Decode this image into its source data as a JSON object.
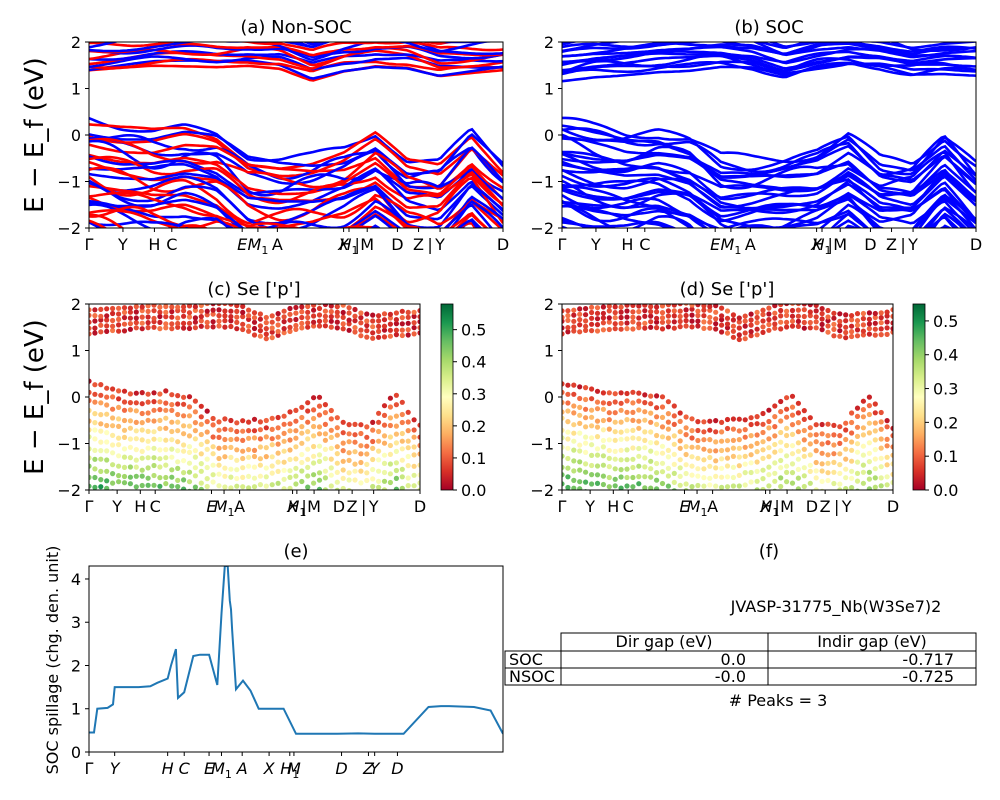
{
  "chart_data": [
    {
      "id": "a",
      "type": "line",
      "title": "(a) Non-SOC",
      "ylabel": "E − E_f (eV)",
      "ylim": [
        -2,
        2
      ],
      "yticks": [
        "2",
        "1",
        "0",
        "−1",
        "−2"
      ],
      "xticks": [
        "Γ",
        "Y",
        "H",
        "C",
        "E",
        "M1",
        "A",
        "X",
        "H1",
        "M",
        "D",
        "Z",
        "Y",
        "D"
      ],
      "series": [
        {
          "color": "#0000ff"
        },
        {
          "color": "#ff0000"
        }
      ],
      "bands": {
        "valence_top": [
          0.35,
          0.2,
          0.1,
          0.15,
          0.0,
          -0.45,
          -0.5,
          -0.45,
          -0.3,
          0.05,
          -0.55,
          -0.6,
          0.1,
          -0.6
        ],
        "conduction_bottom": [
          1.35,
          1.4,
          1.45,
          1.45,
          1.45,
          1.5,
          1.45,
          1.2,
          1.4,
          1.5,
          1.45,
          1.25,
          1.3,
          1.35
        ]
      }
    },
    {
      "id": "b",
      "type": "line",
      "title": "(b) SOC",
      "ylim": [
        -2,
        2
      ],
      "yticks": [
        "2",
        "1",
        "0",
        "−1",
        "−2"
      ],
      "xticks": [
        "Γ",
        "Y",
        "H",
        "C",
        "E",
        "M1",
        "A",
        "X",
        "H1",
        "M",
        "D",
        "Z",
        "Y",
        "D"
      ],
      "series": [
        {
          "color": "#0000ff"
        }
      ],
      "bands": {
        "valence_top": [
          0.3,
          0.15,
          0.05,
          0.1,
          -0.05,
          -0.5,
          -0.5,
          -0.45,
          -0.35,
          0.0,
          -0.55,
          -0.6,
          0.05,
          -0.6
        ],
        "conduction_bottom": [
          1.2,
          1.3,
          1.35,
          1.4,
          1.4,
          1.45,
          1.4,
          1.2,
          1.35,
          1.45,
          1.4,
          1.25,
          1.3,
          1.3
        ]
      }
    },
    {
      "id": "c",
      "type": "scatter",
      "title": "(c)  Se ['p']",
      "ylabel": "E − E_f (eV)",
      "ylim": [
        -2,
        2
      ],
      "yticks": [
        "2",
        "1",
        "0",
        "−1",
        "−2"
      ],
      "xticks": [
        "Γ",
        "Y",
        "H",
        "C",
        "E",
        "M1",
        "A",
        "X",
        "H1",
        "M",
        "D",
        "Z",
        "Y",
        "D"
      ],
      "colorbar": {
        "ticks": [
          "0.5",
          "0.4",
          "0.3",
          "0.2",
          "0.1",
          "0.0"
        ],
        "range": [
          0.0,
          0.58
        ]
      }
    },
    {
      "id": "d",
      "type": "scatter",
      "title": "(d) Se ['p']",
      "ylim": [
        -2,
        2
      ],
      "yticks": [
        "2",
        "1",
        "0",
        "−1",
        "−2"
      ],
      "xticks": [
        "Γ",
        "Y",
        "H",
        "C",
        "E",
        "M1",
        "A",
        "X",
        "H1",
        "M",
        "D",
        "Z",
        "Y",
        "D"
      ],
      "colorbar": {
        "ticks": [
          "0.5",
          "0.4",
          "0.3",
          "0.2",
          "0.1",
          "0.0"
        ],
        "range": [
          0.0,
          0.55
        ]
      }
    },
    {
      "id": "e",
      "type": "line",
      "title": "(e)",
      "ylabel": "SOC spillage (chg. den. unit)",
      "ylim": [
        0,
        4.3
      ],
      "yticks": [
        "4",
        "3",
        "2",
        "1",
        "0"
      ],
      "xticks": [
        "Γ",
        "Y",
        "H",
        "C",
        "E",
        "M1",
        "A",
        "X",
        "H1",
        "M",
        "D",
        "Z",
        "Y",
        "D"
      ],
      "series": [
        {
          "color": "#1f77b4",
          "x": [
            0,
            0.012,
            0.02,
            0.045,
            0.058,
            0.062,
            0.1,
            0.12,
            0.148,
            0.165,
            0.19,
            0.198,
            0.21,
            0.215,
            0.23,
            0.252,
            0.268,
            0.28,
            0.285,
            0.29,
            0.31,
            0.32,
            0.328,
            0.335,
            0.34,
            0.343,
            0.346,
            0.355,
            0.372,
            0.39,
            0.41,
            0.425,
            0.45,
            0.47,
            0.5,
            0.52,
            0.6,
            0.65,
            0.69,
            0.72,
            0.745,
            0.748,
            0.76,
            0.82,
            0.85,
            0.865,
            0.87,
            0.93,
            0.97,
            1.0
          ],
          "y": [
            0.45,
            0.45,
            1.0,
            1.02,
            1.1,
            1.5,
            1.5,
            1.5,
            1.52,
            1.6,
            1.7,
            2.0,
            2.38,
            1.25,
            1.38,
            2.22,
            2.25,
            2.25,
            2.25,
            2.25,
            1.55,
            3.2,
            4.3,
            4.3,
            3.5,
            3.3,
            2.8,
            1.45,
            1.65,
            1.42,
            1.0,
            1.0,
            1.0,
            1.0,
            0.42,
            0.42,
            0.42,
            0.43,
            0.42,
            0.42,
            0.42,
            0.42,
            0.42,
            1.04,
            1.06,
            1.06,
            1.06,
            1.04,
            0.96,
            0.42
          ]
        }
      ]
    }
  ],
  "table": {
    "title": "(f)",
    "material": "JVASP-31775_Nb(W3Se7)2",
    "headers": [
      "",
      "Dir gap (eV)",
      "Indir gap (eV)"
    ],
    "rows": [
      {
        "label": "SOC",
        "dir": "0.0",
        "indir": "-0.717"
      },
      {
        "label": "NSOC",
        "dir": "-0.0",
        "indir": "-0.725"
      }
    ],
    "peaks": "# Peaks = 3"
  }
}
